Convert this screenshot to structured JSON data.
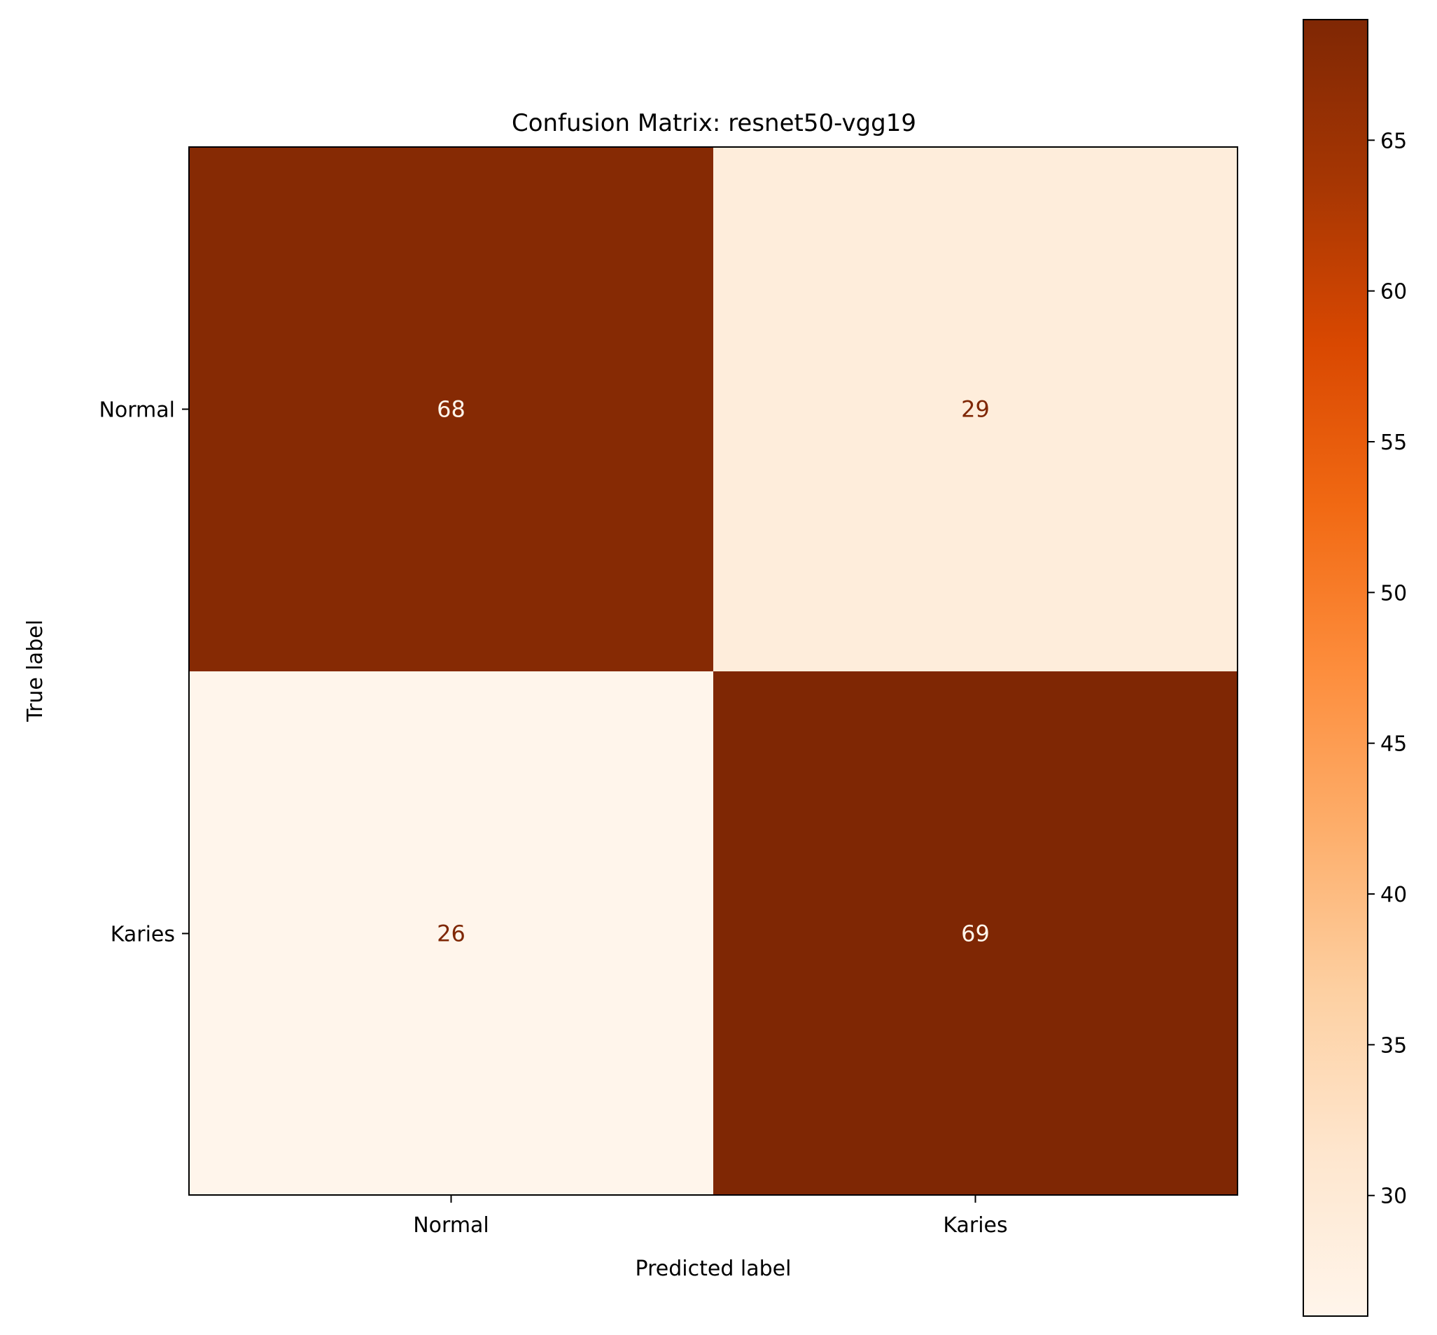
{
  "chart_data": {
    "type": "heatmap",
    "title": "Confusion Matrix: resnet50-vgg19",
    "xlabel": "Predicted label",
    "ylabel": "True label",
    "x_categories": [
      "Normal",
      "Karies"
    ],
    "y_categories": [
      "Normal",
      "Karies"
    ],
    "matrix": [
      [
        68,
        29
      ],
      [
        26,
        69
      ]
    ],
    "colormap": "Oranges",
    "value_range": [
      26,
      69
    ],
    "colorbar_ticks": [
      30,
      35,
      40,
      45,
      50,
      55,
      60,
      65
    ],
    "colorbar_tick_labels": [
      "30",
      "35",
      "40",
      "45",
      "50",
      "55",
      "60",
      "65"
    ],
    "grid": false,
    "colors": {
      "high": "#7f2704",
      "low": "#fff5eb",
      "text_on_dark": "#fff5eb",
      "text_on_light": "#7f2704"
    }
  }
}
